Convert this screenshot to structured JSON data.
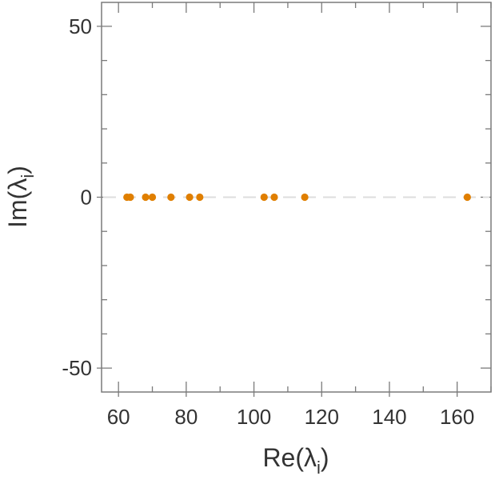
{
  "chart_data": {
    "type": "scatter",
    "title": "",
    "xlabel": "Re(λ",
    "xlabel_sub": "i",
    "xlabel_close": ")",
    "ylabel": "Im(λ",
    "ylabel_sub": "i",
    "ylabel_close": ")",
    "xlim": [
      55,
      170
    ],
    "ylim": [
      -57,
      57
    ],
    "x_ticks": [
      60,
      80,
      100,
      120,
      140,
      160
    ],
    "x_tick_labels": [
      "60",
      "80",
      "100",
      "120",
      "140",
      "160"
    ],
    "y_ticks": [
      -50,
      0,
      50
    ],
    "y_tick_labels": [
      "-50",
      "0",
      "50"
    ],
    "x_minor_step": 10,
    "y_minor_step": 10,
    "grid": false,
    "zero_line": true,
    "series": [
      {
        "color": "#e07f00",
        "x": [
          62.5,
          63.5,
          68,
          70,
          75.5,
          81,
          84,
          103,
          106,
          115,
          163
        ],
        "y": [
          0,
          0,
          0,
          0,
          0,
          0,
          0,
          0,
          0,
          0,
          0
        ]
      }
    ]
  }
}
